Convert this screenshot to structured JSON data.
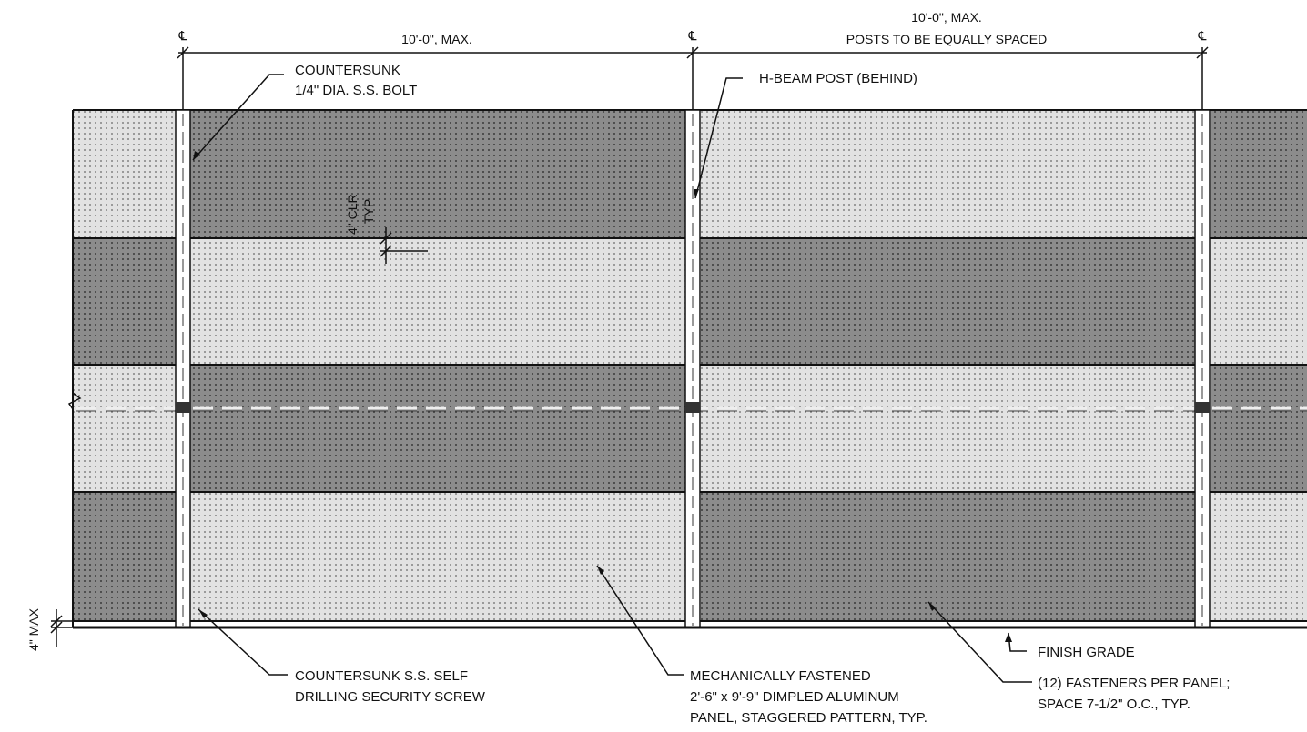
{
  "dimensions": {
    "spacing_left": "10'-0\", MAX.",
    "spacing_right_line1": "10'-0\", MAX.",
    "spacing_right_line2": "POSTS TO BE EQUALLY SPACED",
    "centerline_symbol": "℄",
    "clearance_line1": "4\" CLR",
    "clearance_line2": "TYP",
    "max_gap": "4\" MAX"
  },
  "callouts": {
    "bolt_line1": "COUNTERSUNK",
    "bolt_line2": "1/4\" DIA. S.S. BOLT",
    "post": "H-BEAM POST (BEHIND)",
    "screw_line1": "COUNTERSUNK S.S. SELF",
    "screw_line2": "DRILLING SECURITY SCREW",
    "panel_line1": "MECHANICALLY FASTENED",
    "panel_line2": "2'-6\" x 9'-9\" DIMPLED ALUMINUM",
    "panel_line3": "PANEL, STAGGERED PATTERN, TYP.",
    "grade": "FINISH GRADE",
    "fasteners_line1": "(12) FASTENERS PER PANEL;",
    "fasteners_line2": "SPACE 7-1/2\" O.C., TYP."
  },
  "colors": {
    "light_panel": "#d6d6d6",
    "dark_panel": "#8a8a8a",
    "line": "#111111"
  }
}
